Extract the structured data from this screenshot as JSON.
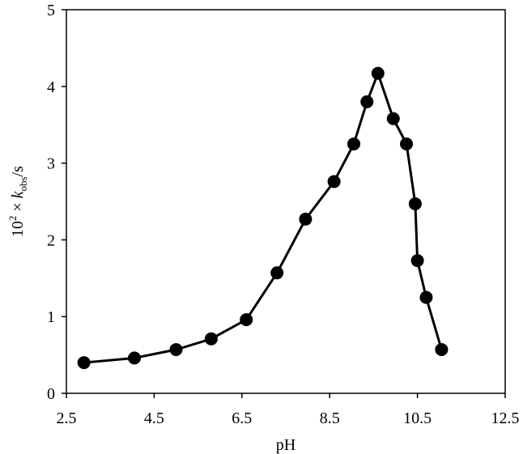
{
  "chart_data": {
    "type": "line",
    "xlabel": "pH",
    "ylabel": {
      "prefix": "10",
      "sup": "2",
      "times": " × ",
      "k": "k",
      "sub": "obs",
      "unit": "/s"
    },
    "xlim": [
      2.5,
      12.5
    ],
    "ylim": [
      0,
      5
    ],
    "xticks": [
      2.5,
      4.5,
      6.5,
      8.5,
      10.5,
      12.5
    ],
    "xtick_labels": [
      "2.5",
      "4.5",
      "6.5",
      "8.5",
      "10.5",
      "12.5"
    ],
    "yticks": [
      0,
      1,
      2,
      3,
      4,
      5
    ],
    "ytick_labels": [
      "0",
      "1",
      "2",
      "3",
      "4",
      "5"
    ],
    "grid": false,
    "series": [
      {
        "marker": "circle",
        "color": "#000000",
        "x": [
          2.9,
          4.05,
          5.0,
          5.8,
          6.6,
          7.3,
          7.95,
          8.6,
          9.05,
          9.35,
          9.6,
          9.95,
          10.25,
          10.45,
          10.5,
          10.7,
          11.05
        ],
        "y": [
          0.4,
          0.46,
          0.57,
          0.71,
          0.96,
          1.57,
          2.27,
          2.76,
          3.25,
          3.8,
          4.17,
          3.58,
          3.25,
          2.47,
          1.73,
          1.25,
          0.57
        ]
      }
    ]
  }
}
